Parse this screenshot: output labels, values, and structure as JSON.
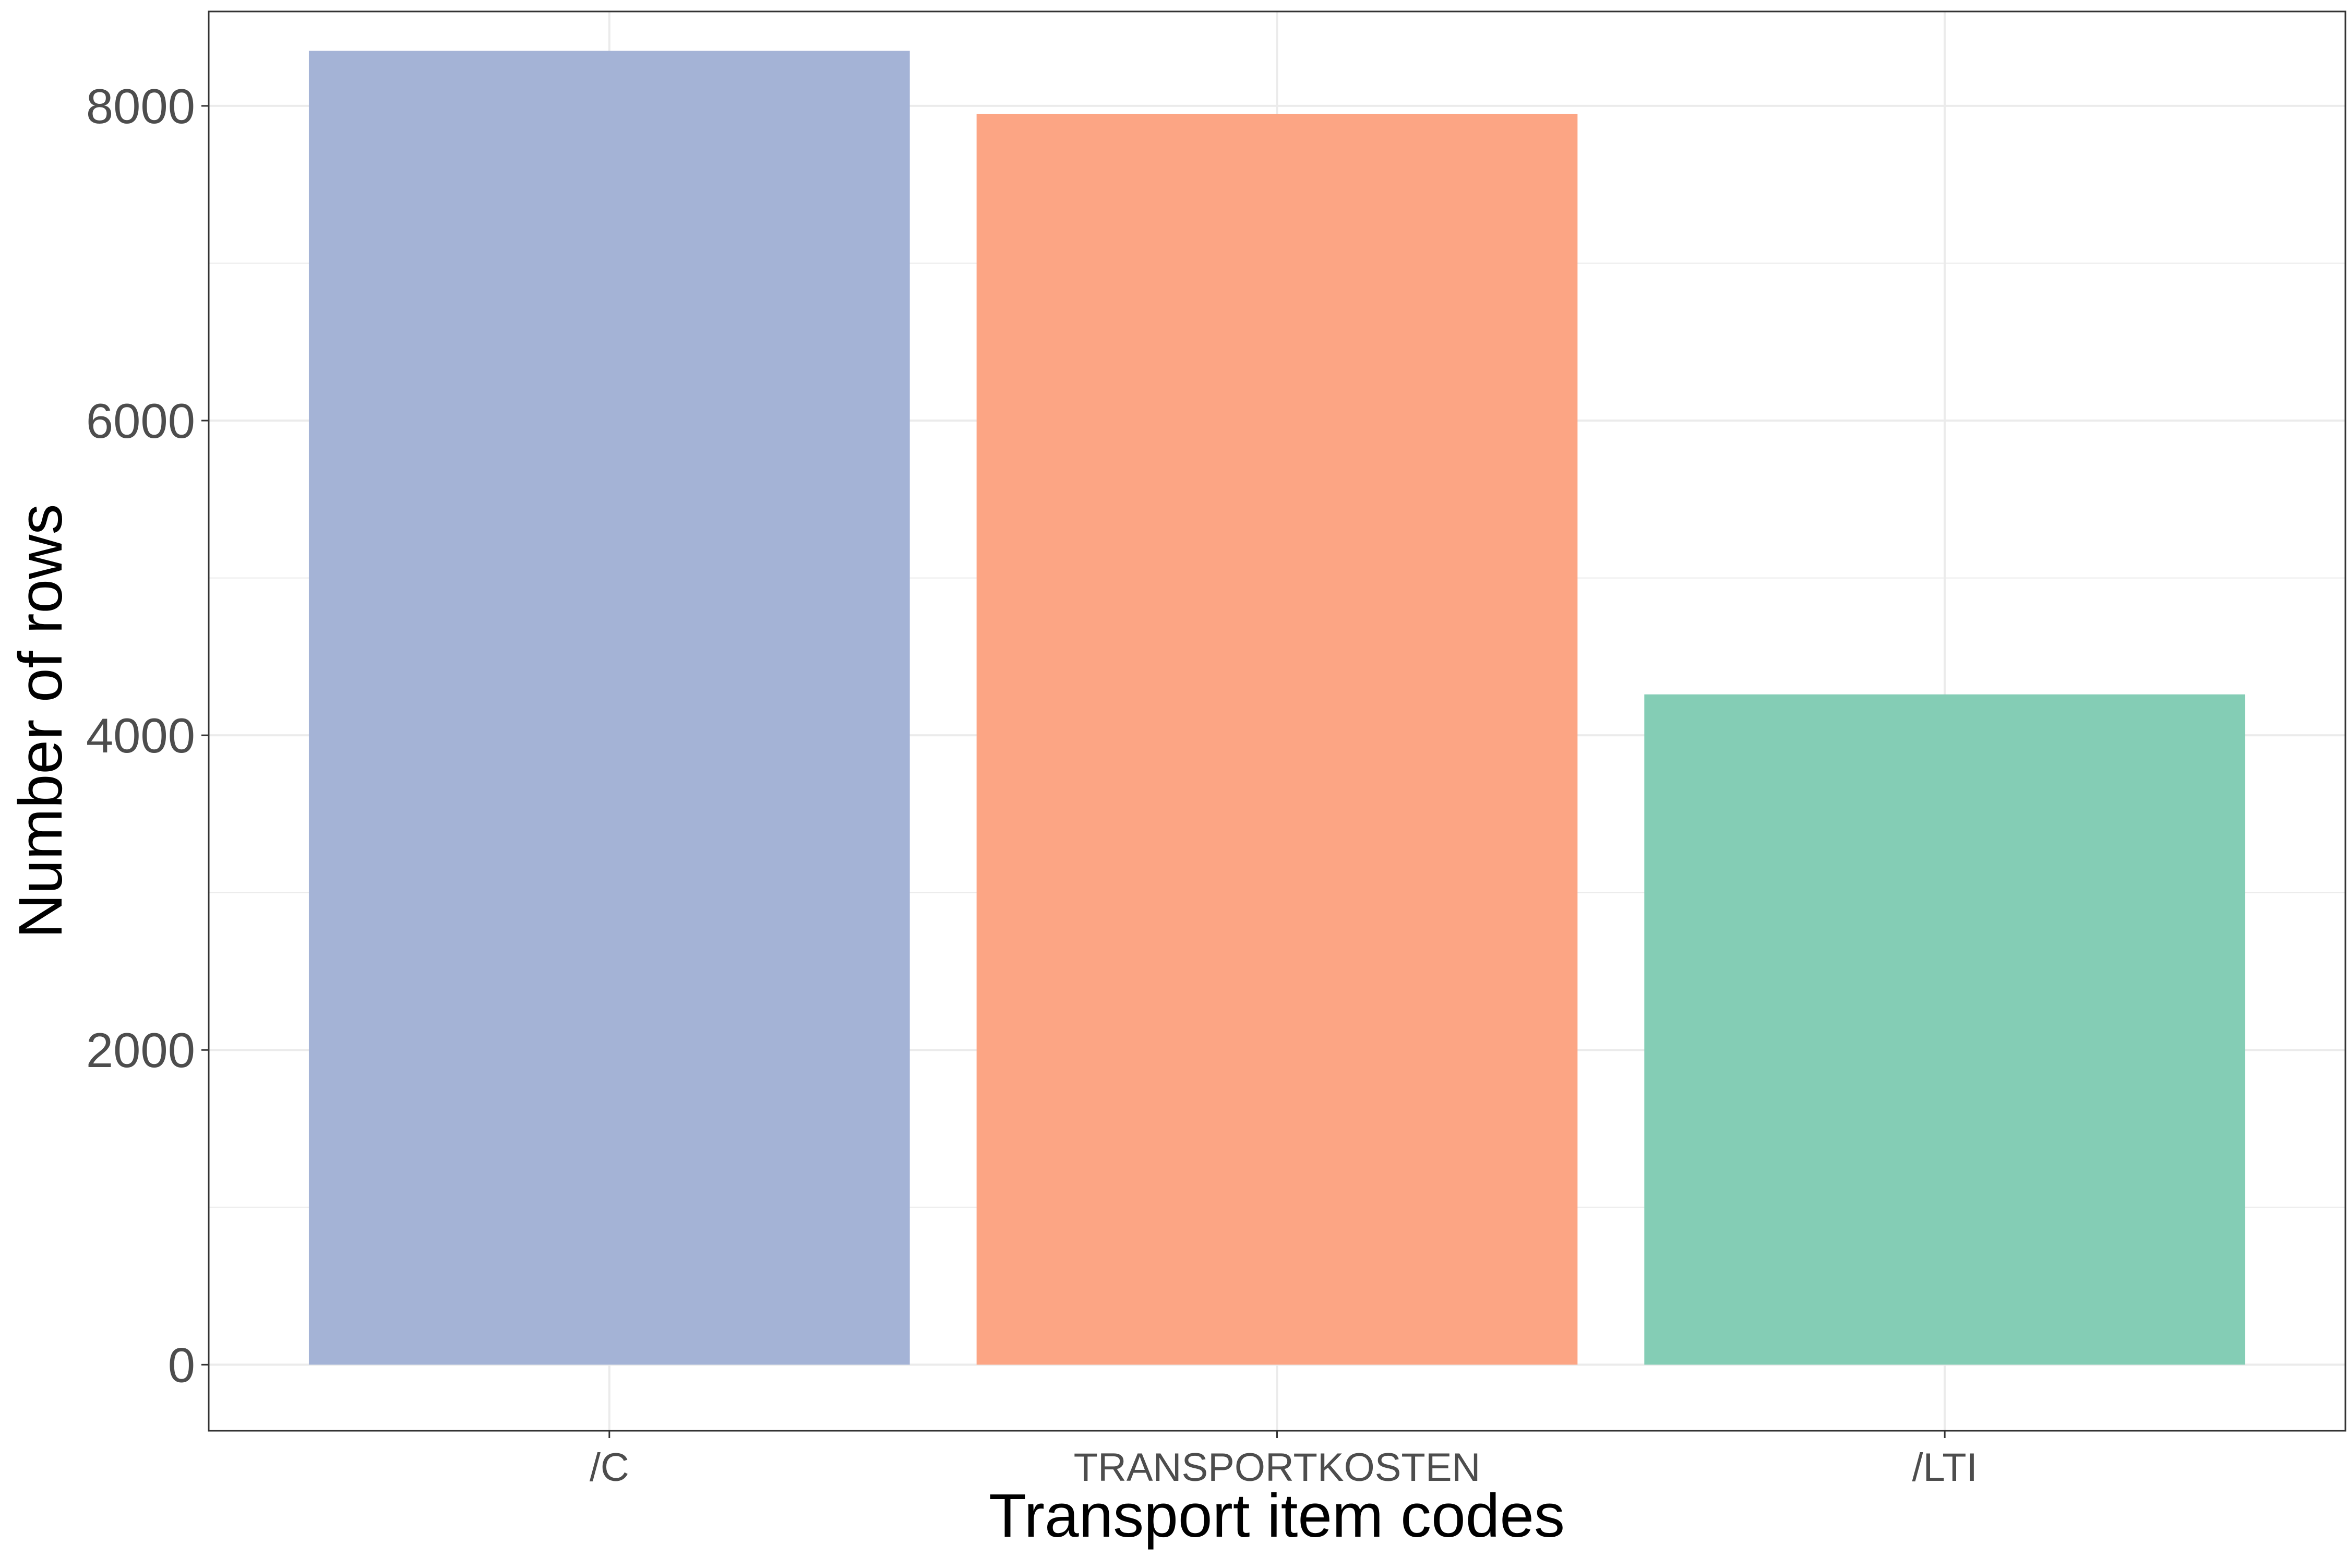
{
  "chart_data": {
    "type": "bar",
    "title": "",
    "xlabel": "Transport item codes",
    "ylabel": "Number of rows",
    "categories": [
      "/C",
      "TRANSPORTKOSTEN",
      "/LTI"
    ],
    "values": [
      8350,
      7950,
      4260
    ],
    "ylim": [
      -420,
      8600
    ],
    "yticks": [
      0,
      2000,
      4000,
      6000,
      8000
    ],
    "ytick_labels": [
      "0",
      "2000",
      "4000",
      "6000",
      "8000"
    ],
    "grid": true,
    "legend": "none",
    "colors": [
      "#a4b3d6",
      "#fca584",
      "#84cdb5"
    ],
    "panel_border_color": "#333333",
    "grid_color": "#ebebeb"
  }
}
